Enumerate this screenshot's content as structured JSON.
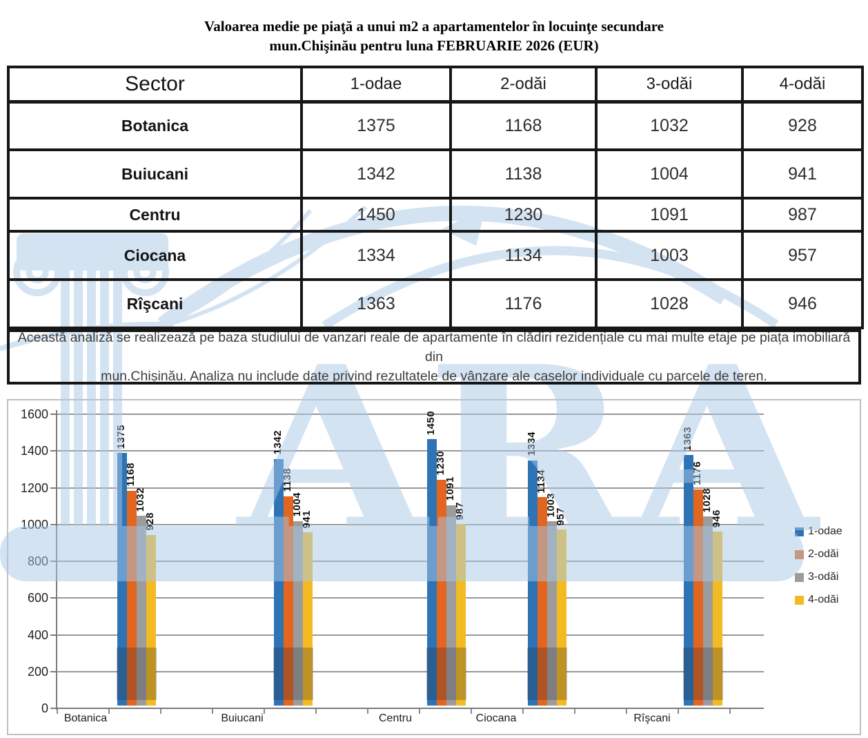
{
  "title": {
    "line1": "Valoarea medie pe piaţă a unui m2 a apartamentelor în locuinţe secundare",
    "line2": "mun.Chişinău pentru luna FEBRUARIE 2026 (EUR)"
  },
  "table": {
    "columns": [
      "Sector",
      "1-odae",
      "2-odăi",
      "3-odăi",
      "4-odăi"
    ],
    "rows": [
      {
        "sector": "Botanica",
        "values": [
          "1375",
          "1168",
          "1032",
          "928"
        ]
      },
      {
        "sector": "Buiucani",
        "values": [
          "1342",
          "1138",
          "1004",
          "941"
        ]
      },
      {
        "sector": "Centru",
        "values": [
          "1450",
          "1230",
          "1091",
          "987"
        ]
      },
      {
        "sector": "Ciocana",
        "values": [
          "1334",
          "1134",
          "1003",
          "957"
        ]
      },
      {
        "sector": "Rîşcani",
        "values": [
          "1363",
          "1176",
          "1028",
          "946"
        ]
      }
    ]
  },
  "note": {
    "line1": "Această analiză se realizează pe baza studiului de vanzari reale de apartamente în clădiri rezidențiale cu mai multe etaje pe piața imobiliară      din",
    "line2": "mun.Chișinău. Analiza nu include date privind rezultatele de vânzare ale caselor individuale cu parcele de teren."
  },
  "chart_data": {
    "type": "bar",
    "title": "",
    "xlabel": "",
    "ylabel": "",
    "categories": [
      "Botanica",
      "Buiucani",
      "Centru",
      "Ciocana",
      "Rîşcani"
    ],
    "series": [
      {
        "name": "1-odae",
        "color": "#2E74B5",
        "values": [
          1375,
          1342,
          1450,
          1334,
          1363
        ]
      },
      {
        "name": "2-odăi",
        "color": "#E2661F",
        "values": [
          1168,
          1138,
          1230,
          1134,
          1176
        ]
      },
      {
        "name": "3-odăi",
        "color": "#9C9C9C",
        "values": [
          1032,
          1004,
          1091,
          1003,
          1028
        ]
      },
      {
        "name": "4-odăi",
        "color": "#F3BA22",
        "values": [
          928,
          941,
          987,
          957,
          946
        ]
      }
    ],
    "ylim": [
      0,
      1600
    ],
    "ytick_step": 200,
    "grid": true,
    "legend_position": "right",
    "bar_labels": true
  },
  "watermark": {
    "text": "ARA",
    "color": "#A9C9E7"
  }
}
